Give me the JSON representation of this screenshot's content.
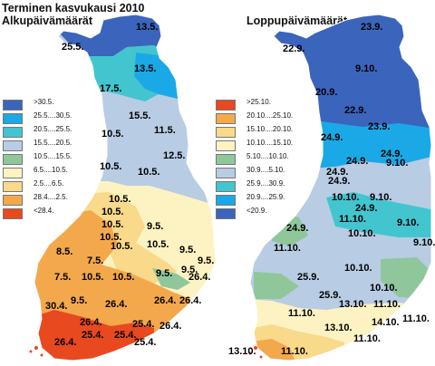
{
  "header": {
    "title": "Terminen kasvukausi 2010",
    "left_subtitle": "Alkupäivämäärät",
    "right_subtitle": "Loppupäivämäärät"
  },
  "left_legend": [
    {
      "label": ">30.5.",
      "color": "#3b64bc"
    },
    {
      "label": "25.5....30.5.",
      "color": "#1aa9e6"
    },
    {
      "label": "20.5....25.5.",
      "color": "#43c5cf"
    },
    {
      "label": "15.5....20.5.",
      "color": "#b8cce4"
    },
    {
      "label": "10.5....15.5.",
      "color": "#8fc79b"
    },
    {
      "label": "6.5....10.5.",
      "color": "#fdf2c2"
    },
    {
      "label": "2.5....6.5.",
      "color": "#f9d98a"
    },
    {
      "label": "28.4....2.5.",
      "color": "#f3a84c"
    },
    {
      "label": "<28.4.",
      "color": "#e8491e"
    }
  ],
  "right_legend": [
    {
      "label": ">25.10.",
      "color": "#e8491e"
    },
    {
      "label": "20.10....25.10.",
      "color": "#f3a84c"
    },
    {
      "label": "15.10....20.10.",
      "color": "#f9d98a"
    },
    {
      "label": "10.10....15.10.",
      "color": "#fdf2c2"
    },
    {
      "label": "5.10....10.10.",
      "color": "#8fc79b"
    },
    {
      "label": "30.9....5.10.",
      "color": "#b8cce4"
    },
    {
      "label": "25.9....30.9.",
      "color": "#43c5cf"
    },
    {
      "label": "20.9....25.9.",
      "color": "#1aa9e6"
    },
    {
      "label": "<20.9.",
      "color": "#3b64bc"
    }
  ],
  "left_map_labels": [
    "13.5.",
    "25.5.",
    "13.5.",
    "17.5.",
    "15.5.",
    "10.5.",
    "11.5.",
    "12.5.",
    "10.5.",
    "10.5.",
    "10.5.",
    "10.5.",
    "10.5.",
    "10.5.",
    "9.5.",
    "10.5.",
    "9.5.",
    "8.5.",
    "7.5.",
    "10.5.",
    "9.5.",
    "9.5.",
    "7.5.",
    "10.5.",
    "10.5.",
    "9.5.",
    "26.4.",
    "30.4.",
    "9.5.",
    "26.4.",
    "26.4.",
    "26.4.",
    "26.4.",
    "25.4.",
    "26.4.",
    "25.4.",
    "25.4.",
    "25.4.",
    "26.4."
  ],
  "right_map_labels": [
    "23.9.",
    "22.9.",
    "9.10.",
    "20.9.",
    "22.9.",
    "23.9.",
    "24.9.",
    "24.9.",
    "24.9.",
    "24.9.",
    "9.10.",
    "10.10.",
    "24.9.",
    "9.10.",
    "24.9.",
    "11.10.",
    "24.9.",
    "9.10.",
    "11.10.",
    "10.10.",
    "9.10.",
    "25.9.",
    "10.10.",
    "10.10.",
    "25.9.",
    "11.10.",
    "13.10.",
    "11.10.",
    "13.10.",
    "11.10.",
    "11.10.",
    "14.10.",
    "13.10.",
    "11.10."
  ]
}
